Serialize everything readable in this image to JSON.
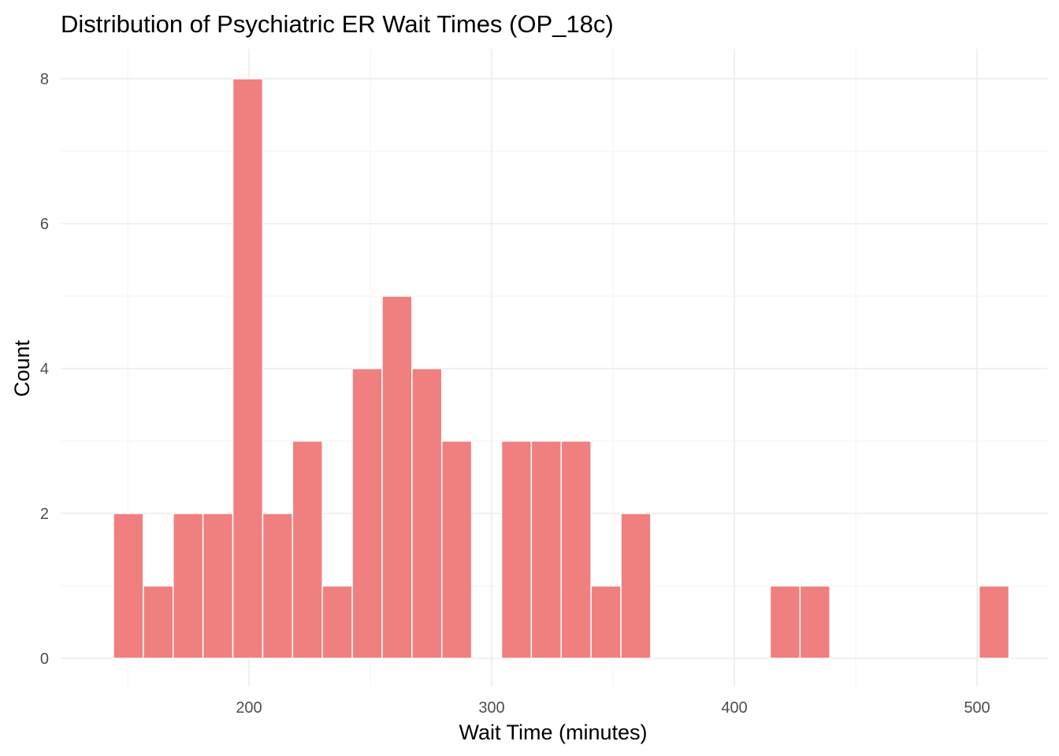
{
  "chart_data": {
    "type": "bar",
    "title": "Distribution of Psychiatric ER Wait Times (OP_18c)",
    "xlabel": "Wait Time (minutes)",
    "ylabel": "Count",
    "xlim": [
      125,
      525
    ],
    "ylim": [
      0,
      8
    ],
    "x_ticks": [
      200,
      300,
      400,
      500
    ],
    "y_ticks": [
      0,
      2,
      4,
      6,
      8
    ],
    "bin_width": 12.3,
    "bins": [
      {
        "center": 150.3,
        "count": 2
      },
      {
        "center": 162.6,
        "count": 1
      },
      {
        "center": 174.9,
        "count": 2
      },
      {
        "center": 187.2,
        "count": 2
      },
      {
        "center": 199.5,
        "count": 8
      },
      {
        "center": 211.8,
        "count": 2
      },
      {
        "center": 224.1,
        "count": 3
      },
      {
        "center": 236.4,
        "count": 1
      },
      {
        "center": 248.7,
        "count": 4
      },
      {
        "center": 261.0,
        "count": 5
      },
      {
        "center": 273.3,
        "count": 4
      },
      {
        "center": 285.6,
        "count": 3
      },
      {
        "center": 297.9,
        "count": 0
      },
      {
        "center": 310.2,
        "count": 3
      },
      {
        "center": 322.5,
        "count": 3
      },
      {
        "center": 334.8,
        "count": 3
      },
      {
        "center": 347.1,
        "count": 1
      },
      {
        "center": 359.4,
        "count": 2
      },
      {
        "center": 371.7,
        "count": 0
      },
      {
        "center": 384.0,
        "count": 0
      },
      {
        "center": 396.3,
        "count": 0
      },
      {
        "center": 408.6,
        "count": 0
      },
      {
        "center": 420.9,
        "count": 1
      },
      {
        "center": 433.2,
        "count": 1
      },
      {
        "center": 445.5,
        "count": 0
      },
      {
        "center": 457.8,
        "count": 0
      },
      {
        "center": 470.1,
        "count": 0
      },
      {
        "center": 482.4,
        "count": 0
      },
      {
        "center": 494.7,
        "count": 0
      },
      {
        "center": 507.0,
        "count": 1
      }
    ],
    "grid": true,
    "bar_color": "#f08080"
  }
}
